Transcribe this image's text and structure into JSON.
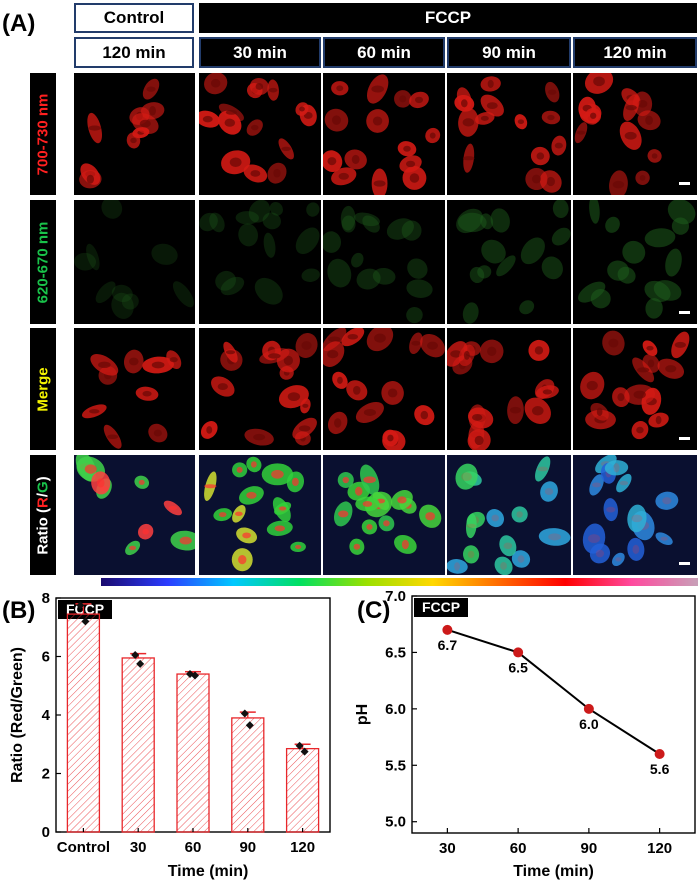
{
  "panelA": {
    "letter": "(A)",
    "control_header": "Control",
    "fccp_header": "FCCP",
    "time_headers": [
      "120 min",
      "30 min",
      "60 min",
      "90 min",
      "120 min"
    ],
    "row_labels": [
      "700-730 nm",
      "620-670 nm",
      "Merge"
    ],
    "ratio_label": {
      "prefix": "Ratio (",
      "r": "R",
      "slash": "/",
      "g": "G",
      "suffix": ")"
    },
    "colors": {
      "red_label": "#ff2020",
      "green_label": "#19c24a",
      "merge_label": "#f5f500",
      "header_border": "#223c6b"
    }
  },
  "panelB": {
    "letter": "(B)",
    "tag": "FCCP",
    "chart_data": {
      "type": "bar",
      "categories": [
        "Control",
        "30",
        "60",
        "90",
        "120"
      ],
      "values": [
        7.45,
        5.95,
        5.4,
        3.9,
        2.85
      ],
      "errors": [
        0.35,
        0.15,
        0.08,
        0.2,
        0.15
      ],
      "points": [
        [
          7.75,
          7.2
        ],
        [
          6.05,
          5.75
        ],
        [
          5.4,
          5.35
        ],
        [
          4.05,
          3.65
        ],
        [
          2.95,
          2.75
        ]
      ],
      "xlabel": "Time (min)",
      "ylabel": "Ratio (Red/Green)",
      "ylim": [
        0,
        8
      ],
      "yticks": [
        "0",
        "2",
        "4",
        "6",
        "8"
      ],
      "bar_color": "#e8272b"
    }
  },
  "panelC": {
    "letter": "(C)",
    "tag": "FCCP",
    "chart_data": {
      "type": "line",
      "x": [
        30,
        60,
        90,
        120
      ],
      "y": [
        6.7,
        6.5,
        6.0,
        5.6
      ],
      "data_labels": [
        "6.7",
        "6.5",
        "6.0",
        "5.6"
      ],
      "xticks": [
        "30",
        "60",
        "90",
        "120"
      ],
      "xlabel": "Time (min)",
      "ylabel": "pH",
      "ylim": [
        4.9,
        7.0
      ],
      "yticks": [
        "5.0",
        "5.5",
        "6.0",
        "6.5",
        "7.0"
      ],
      "point_color": "#cc1a1a"
    }
  }
}
